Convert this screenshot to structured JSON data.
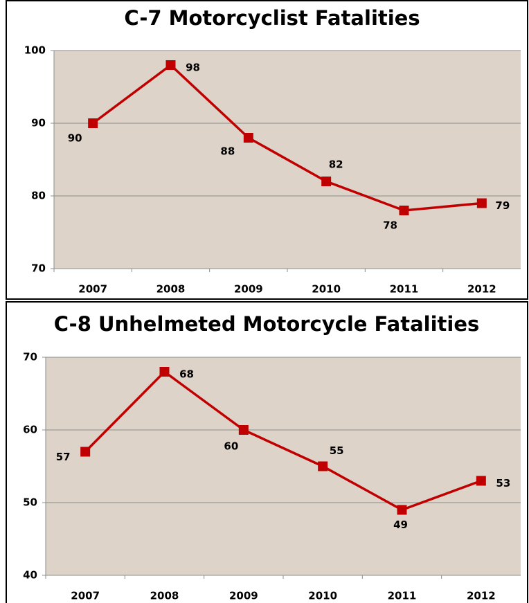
{
  "chart_data": [
    {
      "type": "line",
      "title": "C-7 Motorcyclist Fatalities",
      "categories": [
        "2007",
        "2008",
        "2009",
        "2010",
        "2011",
        "2012"
      ],
      "values": [
        90,
        98,
        88,
        82,
        78,
        79
      ],
      "color": "#c00000",
      "ylim": [
        70,
        100
      ],
      "yticks": [
        70,
        80,
        90,
        100
      ],
      "grid": true
    },
    {
      "type": "line",
      "title": "C-8 Unhelmeted Motorcycle Fatalities",
      "categories": [
        "2007",
        "2008",
        "2009",
        "2010",
        "2011",
        "2012"
      ],
      "values": [
        57,
        68,
        60,
        55,
        49,
        53
      ],
      "color": "#c00000",
      "ylim": [
        40,
        70
      ],
      "yticks": [
        40,
        50,
        60,
        70
      ],
      "grid": true
    }
  ]
}
